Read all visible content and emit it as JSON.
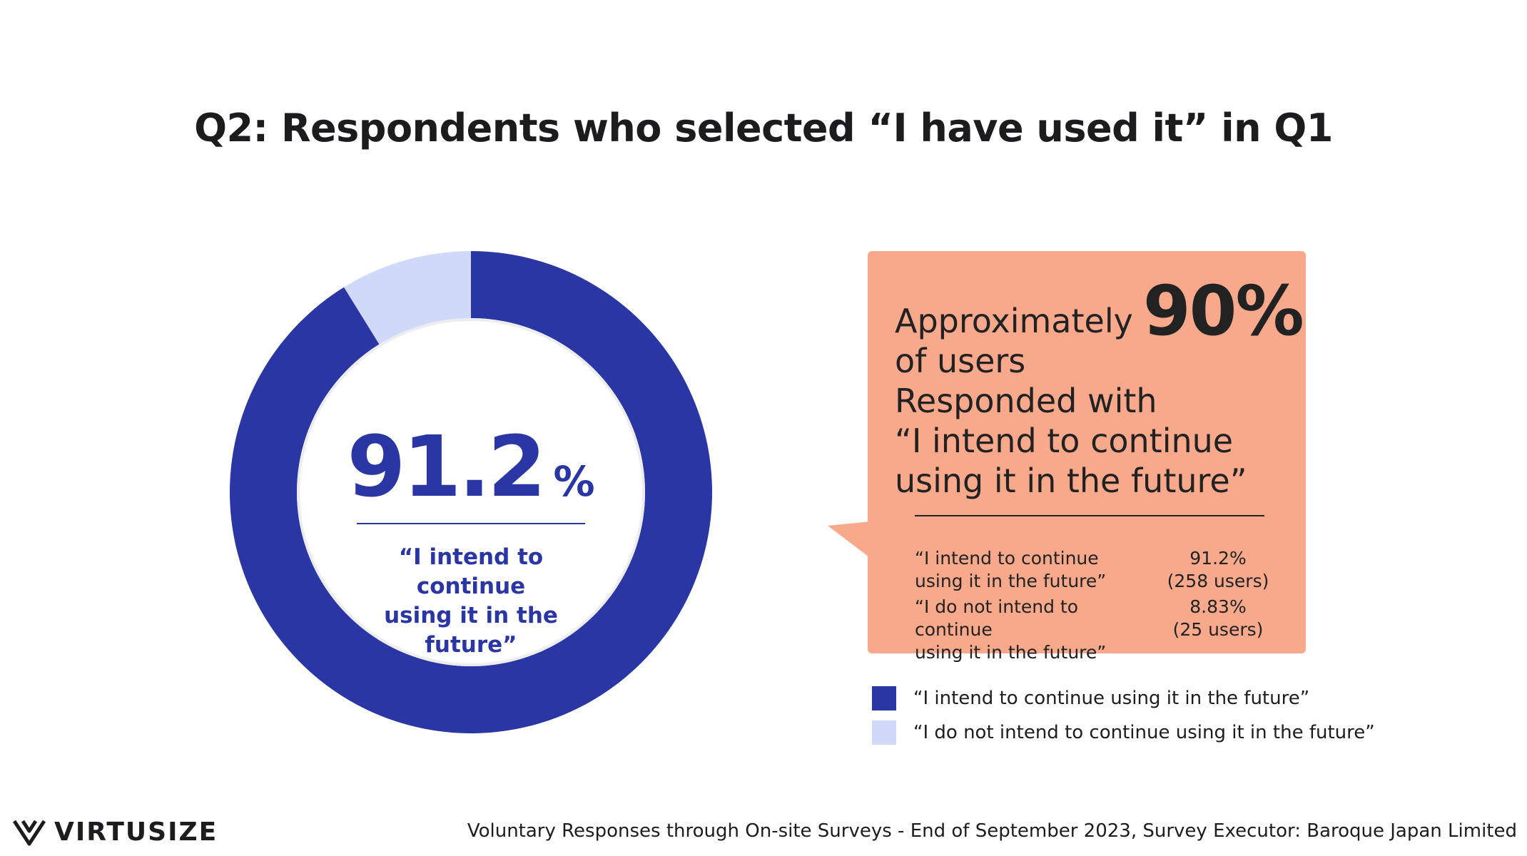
{
  "title": "Q2:  Respondents who selected “I have used it” in Q1",
  "colors": {
    "primary": "#2a36a3",
    "secondary": "#d1d9fb",
    "callout": "#f8a98b"
  },
  "center": {
    "value": "91.2",
    "unit": "%",
    "label_line1": "“I intend to continue",
    "label_line2": "using it in the future”"
  },
  "callout": {
    "line1": "Approximately",
    "highlight": "90%",
    "line2": "of users",
    "line3": "Responded with",
    "line4": "“I intend to continue",
    "line5": "using it in the future”",
    "stats": [
      {
        "label1": "“I intend to continue",
        "label2": "using it in the future”",
        "value1": "91.2%",
        "value2": "(258 users)"
      },
      {
        "label1": "“I do not intend to continue",
        "label2": "using it in the future”",
        "value1": "8.83%",
        "value2": "(25 users)"
      }
    ]
  },
  "legend": [
    {
      "label": "“I intend to continue using it in the future”"
    },
    {
      "label": "“I do not intend to continue using it in the future”"
    }
  ],
  "logo": {
    "text": "VIRTUSIZE",
    "icon": "virtusize-v-icon"
  },
  "footnote": "Voluntary Responses through On-site Surveys - End of September 2023, Survey Executor: Baroque Japan Limited",
  "chart_data": {
    "type": "pie",
    "title": "Q2:  Respondents who selected “I have used it” in Q1",
    "labels": [
      "“I intend to continue using it in the future”",
      "“I do not intend to continue using it in the future”"
    ],
    "values": [
      91.2,
      8.83
    ],
    "counts": [
      258,
      25
    ],
    "colors": [
      "#2a36a3",
      "#d1d9fb"
    ]
  }
}
